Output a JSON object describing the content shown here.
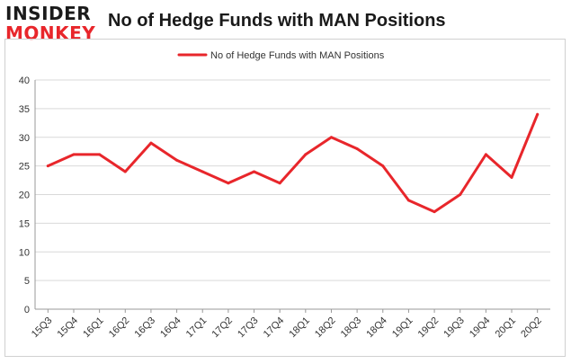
{
  "logo": {
    "line1": "INSIDER",
    "line2": "MONKEY"
  },
  "title": "No of Hedge Funds with MAN Positions",
  "colors": {
    "series": "#e8262b",
    "grid": "#d9d9d9",
    "axis": "#999999"
  },
  "chart_data": {
    "type": "line",
    "title": "No of Hedge Funds with MAN Positions",
    "xlabel": "",
    "ylabel": "",
    "ylim": [
      0,
      40
    ],
    "yticks": [
      "0",
      "5",
      "10",
      "15",
      "20",
      "25",
      "30",
      "35",
      "40"
    ],
    "grid": true,
    "legend_position": "top-center",
    "categories": [
      "15Q3",
      "15Q4",
      "16Q1",
      "16Q2",
      "16Q3",
      "16Q4",
      "17Q1",
      "17Q2",
      "17Q3",
      "17Q4",
      "18Q1",
      "18Q2",
      "18Q3",
      "18Q4",
      "19Q1",
      "19Q2",
      "19Q3",
      "19Q4",
      "20Q1",
      "20Q2"
    ],
    "series": [
      {
        "name": "No of Hedge Funds with MAN Positions",
        "values": [
          25,
          27,
          27,
          24,
          29,
          26,
          24,
          22,
          24,
          22,
          27,
          30,
          28,
          25,
          19,
          17,
          20,
          27,
          23,
          34
        ]
      }
    ]
  }
}
